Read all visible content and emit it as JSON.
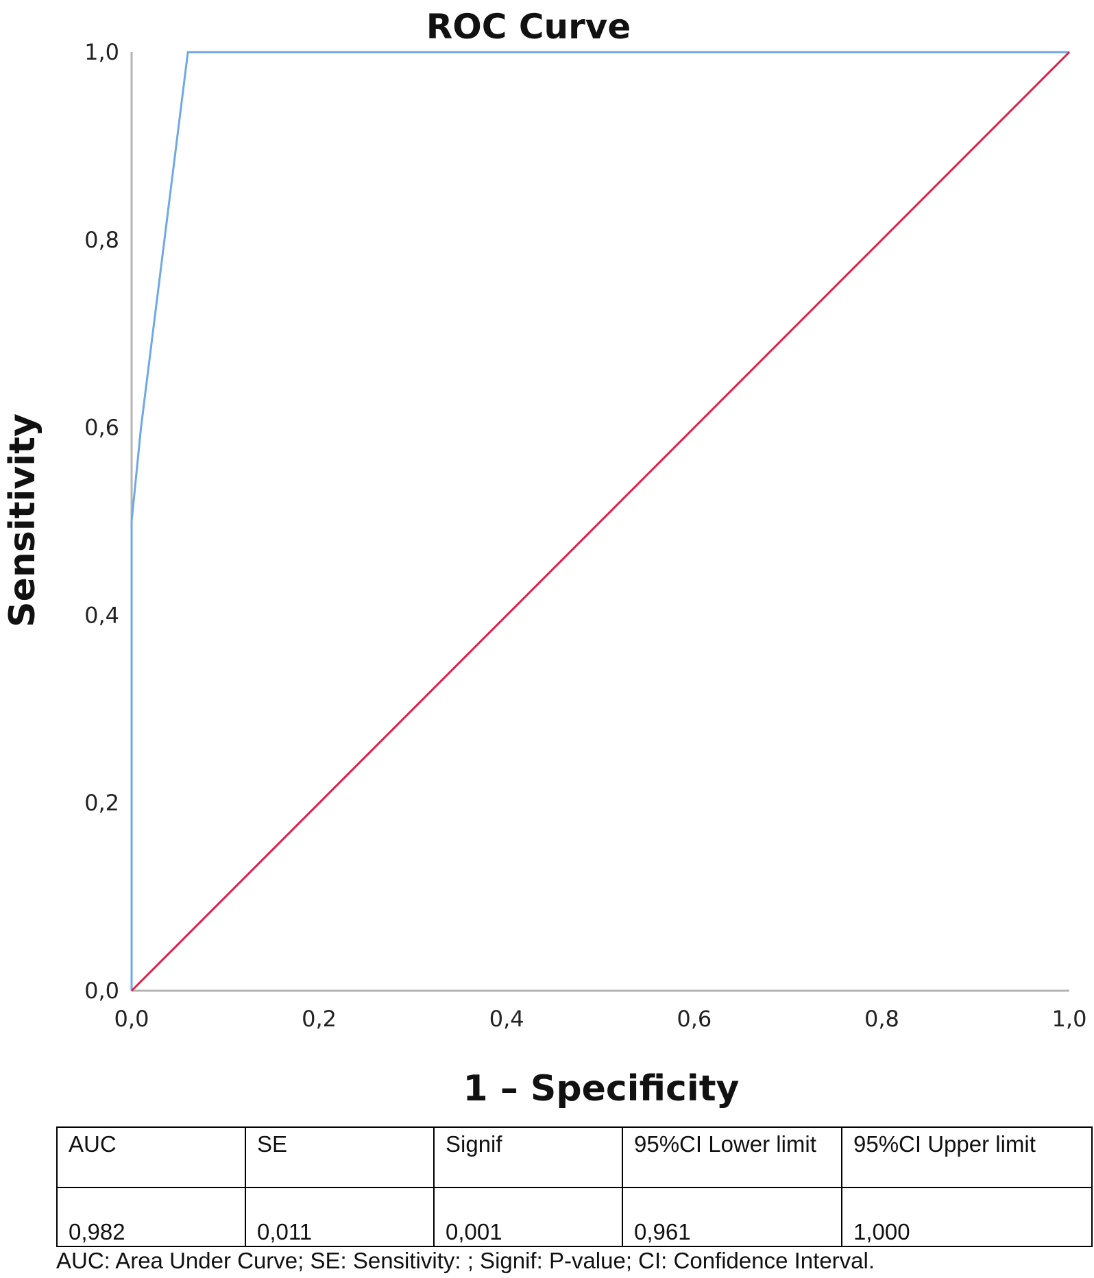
{
  "chart_data": {
    "type": "line",
    "title": "ROC Curve",
    "xlabel": "1 – Specificity",
    "ylabel": "Sensitivity",
    "xlim": [
      0,
      1
    ],
    "ylim": [
      0,
      1
    ],
    "x_ticks": [
      "0,0",
      "0,2",
      "0,4",
      "0,6",
      "0,8",
      "1,0"
    ],
    "y_ticks": [
      "0,0",
      "0,2",
      "0,4",
      "0,6",
      "0,8",
      "1,0"
    ],
    "grid": false,
    "series": [
      {
        "color": "#6fa8e6",
        "points": [
          [
            0,
            0
          ],
          [
            0,
            0.5
          ],
          [
            0.01,
            0.6
          ],
          [
            0.06,
            1.0
          ],
          [
            1.0,
            1.0
          ]
        ]
      },
      {
        "color": "#e0204a",
        "points": [
          [
            0,
            0
          ],
          [
            1.0,
            1.0
          ]
        ]
      }
    ]
  },
  "table": {
    "headers": [
      "AUC",
      "SE",
      "Signif",
      "95%CI Lower limit",
      "95%CI Upper limit"
    ],
    "values": [
      "0,982",
      "0,011",
      "0,001",
      "0,961",
      "1,000"
    ]
  },
  "footnote": "AUC: Area Under Curve; SE: Sensitivity: ; Signif: P-value; CI: Confidence Interval."
}
